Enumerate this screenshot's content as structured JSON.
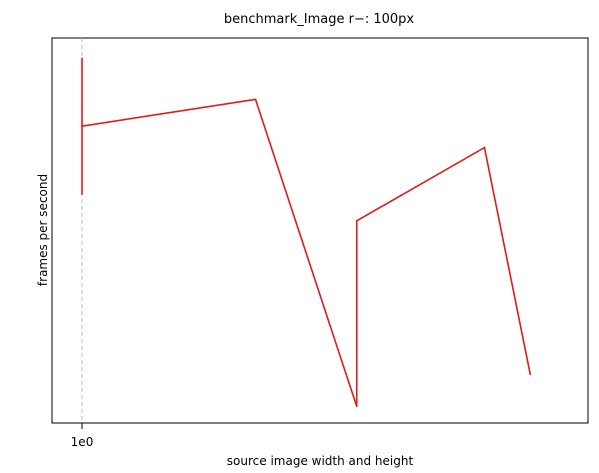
{
  "chart_data": {
    "type": "line",
    "title": "benchmark_Image  r−: 100px",
    "xlabel": "source image width and height",
    "ylabel": "frames per second",
    "x_tick_labels": [
      "1e0"
    ],
    "grid": "off",
    "legend": "none",
    "xlim": [
      0,
      10
    ],
    "ylim": [
      0,
      10
    ],
    "reference_line_x": 0,
    "series": [
      {
        "color": "#e01b1b",
        "points": [
          {
            "x": 0.0,
            "y": 9.85
          },
          {
            "x": 0.0,
            "y": 6.05
          },
          {
            "x": 0.0,
            "y": 7.95
          },
          {
            "x": 3.6,
            "y": 8.7
          },
          {
            "x": 5.7,
            "y": 0.1
          },
          {
            "x": 5.7,
            "y": 5.3
          },
          {
            "x": 8.35,
            "y": 7.35
          },
          {
            "x": 9.3,
            "y": 1.0
          }
        ]
      }
    ],
    "colors": {
      "axes": "#000000",
      "reference_line": "#bbbbbb",
      "background": "#ffffff"
    }
  }
}
